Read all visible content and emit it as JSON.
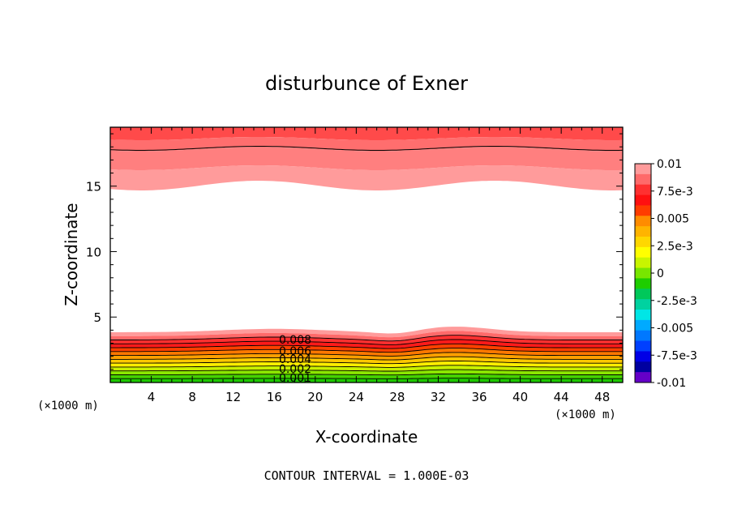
{
  "chart_data": {
    "type": "contour",
    "title": "disturbunce of Exner",
    "xlabel": "X-coordinate",
    "ylabel": "Z-coordinate",
    "x_unit_left": "(×1000 m)",
    "x_unit_right": "(×1000 m)",
    "xlim": [
      0,
      50
    ],
    "ylim": [
      0,
      19.5
    ],
    "x_ticks": [
      {
        "value": 4,
        "label": "4"
      },
      {
        "value": 8,
        "label": "8"
      },
      {
        "value": 12,
        "label": "12"
      },
      {
        "value": 16,
        "label": "16"
      },
      {
        "value": 20,
        "label": "20"
      },
      {
        "value": 24,
        "label": "24"
      },
      {
        "value": 28,
        "label": "28"
      },
      {
        "value": 32,
        "label": "32"
      },
      {
        "value": 36,
        "label": "36"
      },
      {
        "value": 40,
        "label": "40"
      },
      {
        "value": 44,
        "label": "44"
      },
      {
        "value": 48,
        "label": "48"
      }
    ],
    "y_ticks": [
      {
        "value": 5,
        "label": "5"
      },
      {
        "value": 10,
        "label": "10"
      },
      {
        "value": 15,
        "label": "15"
      }
    ],
    "colorbar": {
      "levels": [
        {
          "label": "0.01"
        },
        {
          "label": "7.5e-3"
        },
        {
          "label": "0.005"
        },
        {
          "label": "2.5e-3"
        },
        {
          "label": "0"
        },
        {
          "label": "-2.5e-3"
        },
        {
          "label": "-0.005"
        },
        {
          "label": "-7.5e-3"
        },
        {
          "label": "-0.01"
        }
      ],
      "colors": [
        "#ff9b9b",
        "#ff6a6a",
        "#ff3030",
        "#ff1010",
        "#ff3c00",
        "#ff8c00",
        "#ffb400",
        "#ffd700",
        "#ffff00",
        "#c8f500",
        "#78e600",
        "#1ecd00",
        "#00c85a",
        "#00d2a0",
        "#00e6e6",
        "#00aaff",
        "#0078ff",
        "#0040ff",
        "#0000e6",
        "#0000a0",
        "#6400c8"
      ]
    },
    "contour_labels": [
      "0.008",
      "0.006",
      "0.004",
      "0.002",
      "0.001"
    ],
    "contour_interval_text": "CONTOUR INTERVAL = 1.000E-03"
  }
}
